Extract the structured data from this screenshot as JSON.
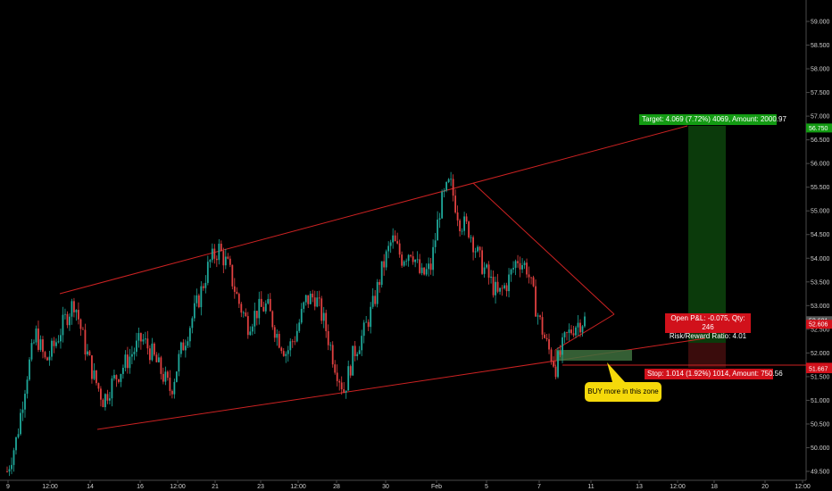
{
  "chart_data": {
    "type": "candlestick",
    "x_tick_labels": [
      "9",
      "12:00",
      "14",
      "16",
      "12:00",
      "21",
      "23",
      "12:00",
      "28",
      "30",
      "Feb",
      "5",
      "7",
      "11",
      "13",
      "12:00",
      "18",
      "20",
      "12:00"
    ],
    "y_tick_labels": [
      "59.000",
      "58.500",
      "58.000",
      "57.500",
      "57.000",
      "56.500",
      "56.000",
      "55.500",
      "55.000",
      "54.500",
      "54.000",
      "53.500",
      "53.000",
      "52.500",
      "52.000",
      "51.500",
      "51.000",
      "50.500",
      "50.000",
      "49.500"
    ],
    "ylim": [
      49.35,
      59.2
    ],
    "price_path": [
      49.5,
      50.2,
      51.5,
      52.4,
      51.8,
      52.2,
      52.7,
      53.1,
      52.2,
      51.5,
      51.0,
      51.4,
      51.7,
      52.0,
      52.3,
      52.0,
      51.6,
      51.2,
      52.0,
      52.6,
      53.2,
      53.9,
      54.2,
      53.8,
      53.1,
      52.6,
      52.9,
      53.0,
      52.4,
      52.0,
      52.4,
      53.1,
      53.2,
      52.6,
      51.8,
      51.2,
      52.0,
      52.4,
      53.0,
      53.8,
      54.4,
      54.0,
      54.2,
      53.6,
      53.8,
      55.1,
      55.6,
      54.8,
      54.6,
      54.0,
      53.6,
      53.2,
      53.5,
      54.0,
      53.8,
      52.9,
      52.2,
      51.7,
      52.3,
      52.6,
      52.7
    ],
    "price_labels": [
      {
        "value": 52.681,
        "text": "52.681",
        "color": "#555555"
      },
      {
        "value": 52.606,
        "text": "52.606",
        "color": "#d1111b"
      },
      {
        "value": 56.75,
        "text": "56.750",
        "color": "#139b13"
      },
      {
        "value": 51.698,
        "text": "51.698",
        "color": "#d1111b"
      },
      {
        "value": 51.667,
        "text": "51.667",
        "color": "#d1111b"
      }
    ],
    "colors": {
      "up": "#1fa89a",
      "down": "#e04040",
      "trendline": "#cc2222",
      "target": "#139b13",
      "stop": "#d1111b",
      "zone": "#2d5a2d"
    }
  },
  "annotations": {
    "target_text": "Target: 4.069 (7.72%) 4069, Amount: 2000.97",
    "stop_text": "Stop: 1.014 (1.92%) 1014, Amount: 750.56",
    "pnl_line1": "Open P&L: -0.075, Qty: 246",
    "pnl_line2": "Risk/Reward Ratio: 4.01",
    "callout_text": "BUY more in this zone"
  }
}
